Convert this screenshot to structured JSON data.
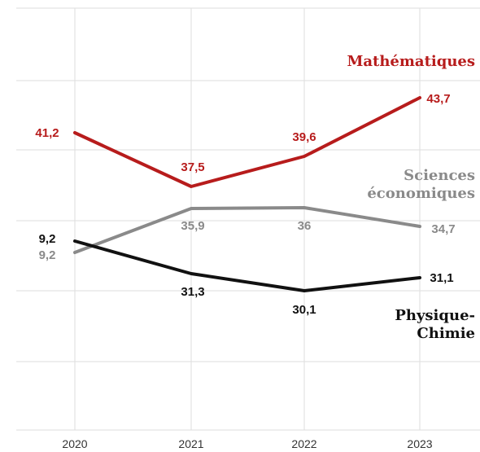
{
  "chart_data": {
    "type": "line",
    "categories": [
      "2020",
      "2021",
      "2022",
      "2023"
    ],
    "title": "",
    "xlabel": "",
    "ylabel": "",
    "grid": true,
    "legend": "direct labels at right",
    "series": [
      {
        "name_lines": [
          "Mathématiques"
        ],
        "color": "#b71c1c",
        "values": [
          41.2,
          37.5,
          39.6,
          43.7
        ],
        "labels": [
          "41,2",
          "37,5",
          "39,6",
          "43,7"
        ]
      },
      {
        "name_lines": [
          "Sciences",
          "économiques"
        ],
        "color": "#8a8a8a",
        "values": [
          9.2,
          35.9,
          36,
          34.7
        ],
        "labels": [
          "9,2",
          "35,9",
          "36",
          "34,7"
        ]
      },
      {
        "name_lines": [
          "Physique-",
          "Chimie"
        ],
        "color": "#111111",
        "values": [
          9.2,
          31.3,
          30.1,
          31.1
        ],
        "labels": [
          "9,2",
          "31,3",
          "30,1",
          "31,1"
        ]
      }
    ]
  }
}
